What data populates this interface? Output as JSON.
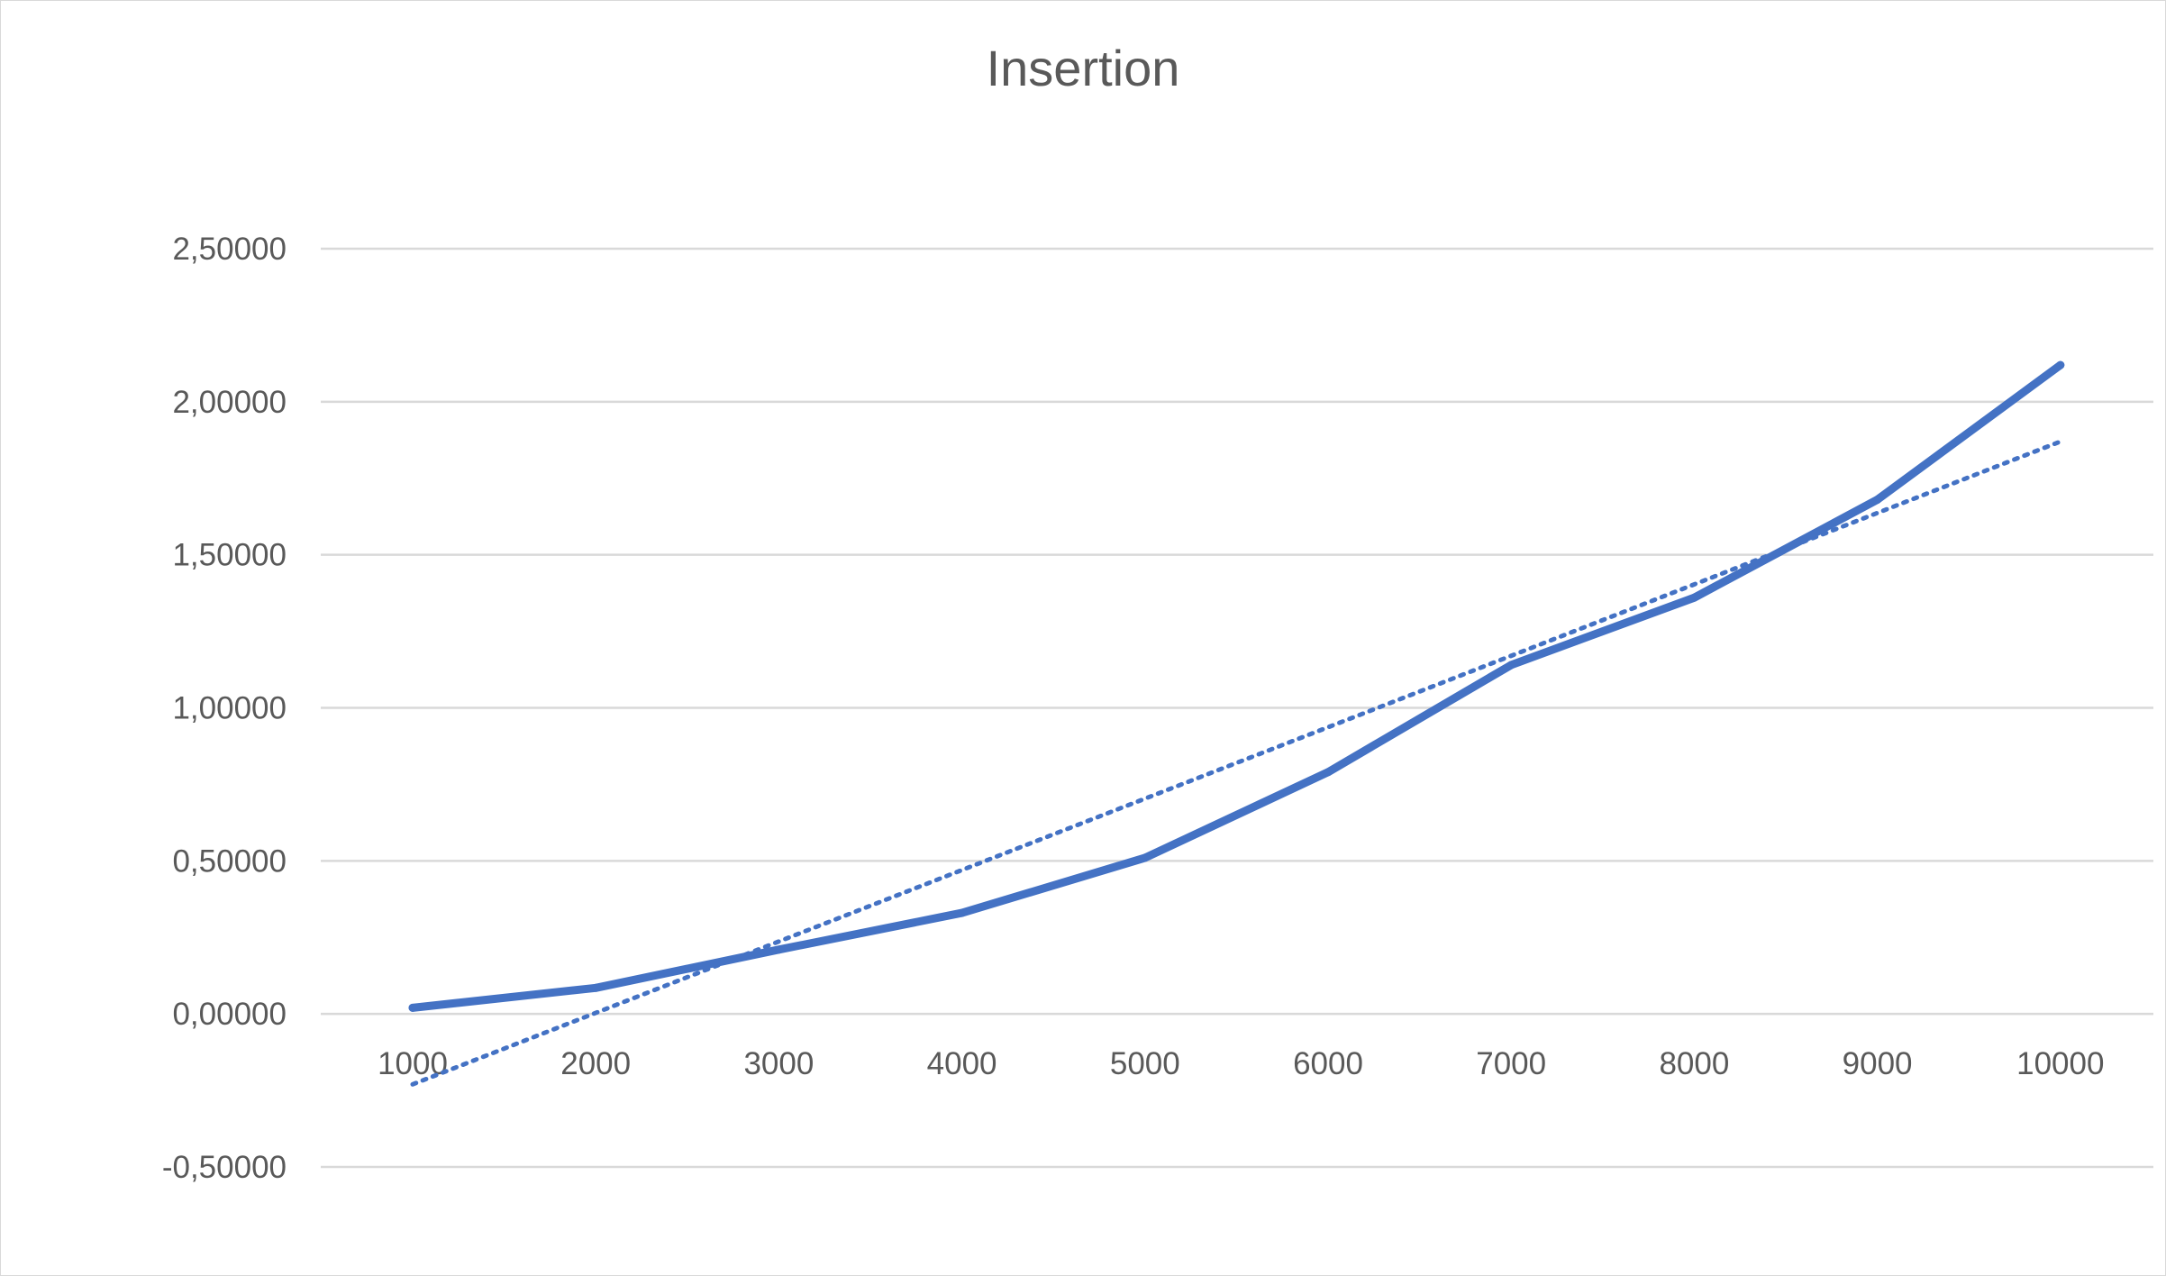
{
  "chart_data": {
    "type": "line",
    "title": "Insertion",
    "xlabel": "",
    "ylabel": "",
    "categories": [
      "1000",
      "2000",
      "3000",
      "4000",
      "5000",
      "6000",
      "7000",
      "8000",
      "9000",
      "10000"
    ],
    "series": [
      {
        "values": [
          0.02,
          0.085,
          0.21,
          0.33,
          0.51,
          0.79,
          1.14,
          1.36,
          1.68,
          2.12
        ],
        "color": "#4472c4",
        "style": "solid"
      }
    ],
    "trendline": {
      "kind": "linear",
      "start": -0.23,
      "end": 1.87,
      "color": "#4472c4",
      "style": "dotted"
    },
    "ylim": [
      -0.5,
      2.5
    ],
    "yticks": [
      "-0,50000",
      "0,00000",
      "0,50000",
      "1,00000",
      "1,50000",
      "2,00000",
      "2,50000"
    ],
    "ytick_values": [
      -0.5,
      0,
      0.5,
      1.0,
      1.5,
      2.0,
      2.5
    ],
    "grid": true,
    "legend": "none"
  }
}
